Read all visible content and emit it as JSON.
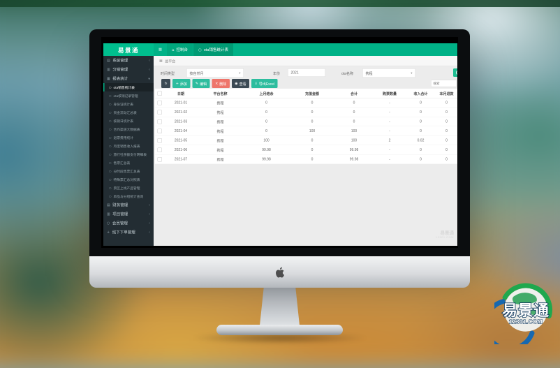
{
  "brand": {
    "name": "易景通"
  },
  "header": {
    "menu_icon": "≡",
    "tabs": [
      {
        "label": "控制台",
        "icon": "⌂"
      },
      {
        "label": "ota销售统计表",
        "icon": "○"
      }
    ]
  },
  "breadcrumb": {
    "icon": "▦",
    "label": "总平台"
  },
  "sidebar": {
    "sections": [
      {
        "label": "系统管理",
        "icon": "▤",
        "chevron": "‹"
      },
      {
        "label": "分销管理",
        "icon": "▥",
        "chevron": "‹"
      },
      {
        "label": "报表统计",
        "icon": "▦",
        "chevron": "▾"
      }
    ],
    "report_items": [
      {
        "label": "ota销售统计表",
        "active": true
      },
      {
        "label": "ota核销记录管理"
      },
      {
        "label": "身份证统计表"
      },
      {
        "label": "资金流动汇总表"
      },
      {
        "label": "核销日统计表"
      },
      {
        "label": "合作渠道大数据表"
      },
      {
        "label": "退票费用统计"
      },
      {
        "label": "月度销售收入报表"
      },
      {
        "label": "旅行社余额支付明细表"
      },
      {
        "label": "售票汇总表"
      },
      {
        "label": "分时段售票汇总表"
      },
      {
        "label": "特殊票汇总对照表"
      },
      {
        "label": "景区上线产品管理"
      },
      {
        "label": "单品与分组统计查询"
      }
    ],
    "bottom_sections": [
      {
        "label": "财务管理",
        "icon": "▤",
        "chevron": "‹"
      },
      {
        "label": "项目管理",
        "icon": "▥",
        "chevron": "‹"
      },
      {
        "label": "会员管理",
        "icon": "○",
        "chevron": "‹"
      },
      {
        "label": "线下下单管理",
        "icon": "+",
        "chevron": "‹"
      }
    ]
  },
  "filters": {
    "time_type_label": "时间类型",
    "time_type_value": "按自然月",
    "year_label": "年份",
    "year_value": "2021",
    "ota_label": "ota名称",
    "ota_value": "携程"
  },
  "toolbar": {
    "buttons": [
      {
        "name": "refresh-button",
        "glyph": "↻",
        "label": "",
        "style": "dark"
      },
      {
        "name": "add-button",
        "glyph": "+",
        "label": "添加",
        "style": "green"
      },
      {
        "name": "edit-button",
        "glyph": "✎",
        "label": "编辑",
        "style": "green"
      },
      {
        "name": "delete-button",
        "glyph": "×",
        "label": "删除",
        "style": "red"
      },
      {
        "name": "view-button",
        "glyph": "◉",
        "label": "查看",
        "style": "dark"
      },
      {
        "name": "export-button",
        "glyph": "⇓",
        "label": "导出Excel",
        "style": "green"
      }
    ],
    "search_placeholder": "搜索"
  },
  "table": {
    "columns": [
      "日期",
      "平台名称",
      "上月结余",
      "充值金额",
      "合计",
      "购票数量",
      "收入合计",
      "本月退款"
    ],
    "rows": [
      [
        "2021-01",
        "携程",
        "0",
        "0",
        "0",
        "-",
        "0",
        "0"
      ],
      [
        "2021-02",
        "携程",
        "0",
        "0",
        "0",
        "-",
        "0",
        "0"
      ],
      [
        "2021-03",
        "携程",
        "0",
        "0",
        "0",
        "-",
        "0",
        "0"
      ],
      [
        "2021-04",
        "携程",
        "0",
        "100",
        "100",
        "-",
        "0",
        "0"
      ],
      [
        "2021-05",
        "携程",
        "100",
        "0",
        "100",
        "2",
        "0.02",
        "0"
      ],
      [
        "2021-06",
        "携程",
        "99.98",
        "0",
        "99.98",
        "-",
        "0",
        "0"
      ],
      [
        "2021-07",
        "携程",
        "99.98",
        "0",
        "99.98",
        "-",
        "0",
        "0"
      ]
    ]
  },
  "watermark": {
    "line1": "易景通",
    "line2": "12301.COM"
  },
  "logo": {
    "title": "易景通",
    "domain": "12301.COM"
  },
  "colors": {
    "accent_green": "#00B287",
    "sidebar_dark": "#232D33",
    "danger": "#EE756B"
  }
}
